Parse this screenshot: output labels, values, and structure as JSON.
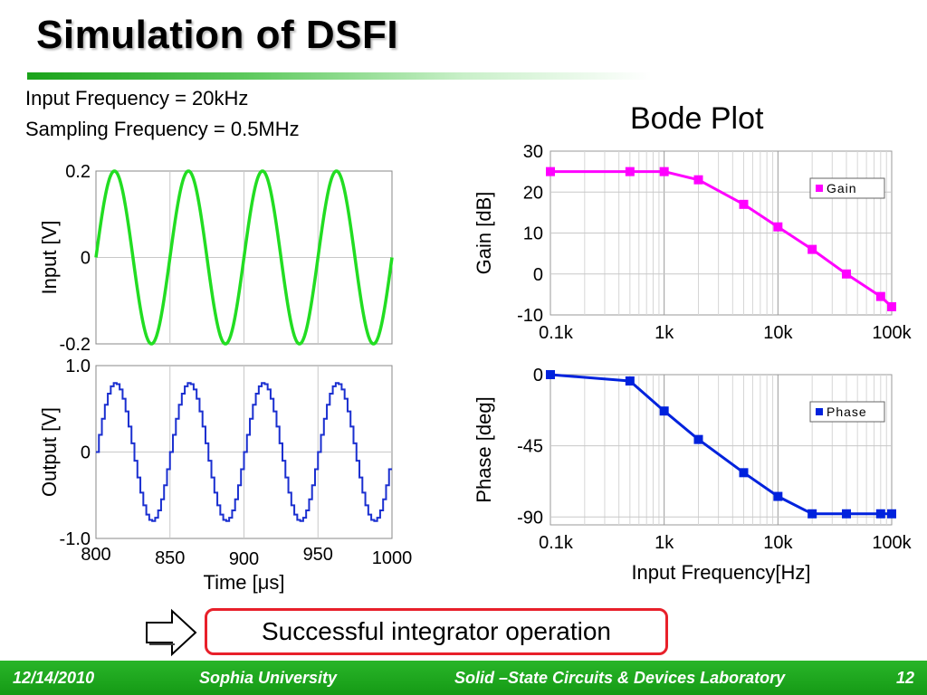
{
  "slide": {
    "title": "Simulation of DSFI",
    "info_lines": [
      "Input Frequency = 20kHz",
      "Sampling Frequency = 0.5MHz"
    ],
    "bode_title": "Bode Plot",
    "callout": "Successful integrator operation",
    "footer": {
      "date": "12/14/2010",
      "org": "Sophia University",
      "lab": "Solid –State Circuits & Devices Laboratory",
      "page": "12"
    }
  },
  "chart_data": [
    {
      "type": "line",
      "ylabel": "Input [V]",
      "xlim": [
        800,
        1000
      ],
      "ylim": [
        -0.2,
        0.2
      ],
      "y_ticks": [
        "0.2",
        "0",
        "-0.2"
      ],
      "color": "#22dd22",
      "signal": {
        "frequency_khz": 20,
        "amplitude": 0.2
      }
    },
    {
      "type": "line",
      "ylabel": "Output [V]",
      "xlabel": "Time [μs]",
      "xlim": [
        800,
        1000
      ],
      "ylim": [
        -1.0,
        1.0
      ],
      "x_ticks": [
        "800",
        "850",
        "900",
        "950",
        "1000"
      ],
      "y_ticks": [
        "1.0",
        "0",
        "-1.0"
      ],
      "color": "#1a2fd0",
      "signal": {
        "frequency_khz": 20,
        "amplitude": 0.8,
        "sample_period_us": 2
      }
    },
    {
      "type": "line",
      "ylabel": "Gain [dB]",
      "xscale": "log",
      "xlim": [
        100,
        100000
      ],
      "ylim": [
        -10,
        30
      ],
      "x_ticks": [
        "0.1k",
        "1k",
        "10k",
        "100k"
      ],
      "y_ticks": [
        "30",
        "20",
        "10",
        "0",
        "-10"
      ],
      "legend": "Gain",
      "legend_position": "top-right",
      "color": "#ff00ff",
      "x": [
        100,
        500,
        1000,
        2000,
        5000,
        10000,
        20000,
        40000,
        80000,
        100000
      ],
      "y": [
        25,
        25,
        25,
        23,
        17,
        11.5,
        6,
        0,
        -5.5,
        -8
      ]
    },
    {
      "type": "line",
      "ylabel": "Phase [deg]",
      "xlabel": "Input Frequency[Hz]",
      "xscale": "log",
      "xlim": [
        100,
        100000
      ],
      "ylim": [
        -95,
        0
      ],
      "x_ticks": [
        "0.1k",
        "1k",
        "10k",
        "100k"
      ],
      "y_ticks": [
        "0",
        "-45",
        "-90"
      ],
      "legend": "Phase",
      "legend_position": "top-right",
      "color": "#0022dd",
      "x": [
        100,
        500,
        1000,
        2000,
        5000,
        10000,
        20000,
        40000,
        80000,
        100000
      ],
      "y": [
        0,
        -4,
        -23,
        -41,
        -62,
        -77,
        -88,
        -88,
        -88,
        -88
      ]
    }
  ]
}
